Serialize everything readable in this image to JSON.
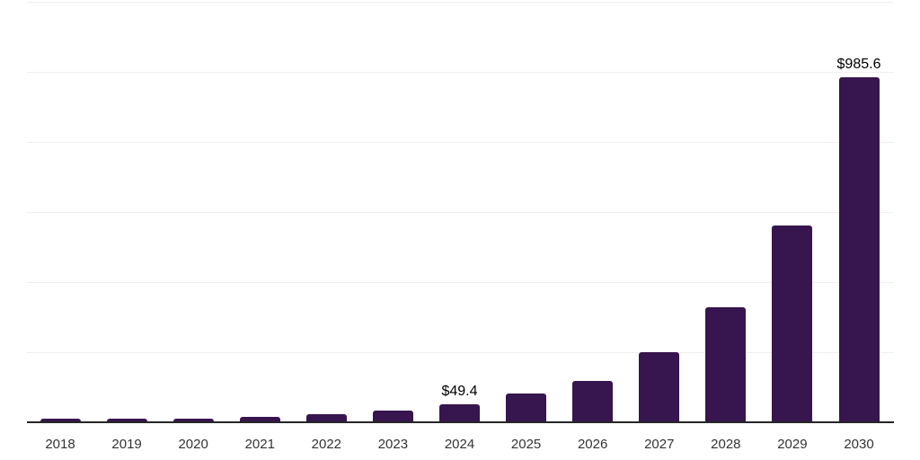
{
  "chart_data": {
    "type": "bar",
    "title": "",
    "xlabel": "",
    "ylabel": "",
    "categories": [
      "2018",
      "2019",
      "2020",
      "2021",
      "2022",
      "2023",
      "2024",
      "2025",
      "2026",
      "2027",
      "2028",
      "2029",
      "2030"
    ],
    "values": [
      9,
      10,
      10,
      13,
      22,
      32,
      49.4,
      80,
      118,
      198,
      327,
      560,
      985.6
    ],
    "value_labels": {
      "2024": "$49.4",
      "2030": "$985.6"
    },
    "ylim": [
      0,
      1200
    ],
    "gridline_interval": 200,
    "grid": true,
    "legend": "none",
    "y_tick_labels_visible": false,
    "colors": {
      "bar": "#37154e",
      "axis": "#262626",
      "gridline": "#efefef",
      "x_label": "#333333",
      "value_label": "#000000",
      "background": "#ffffff"
    }
  }
}
